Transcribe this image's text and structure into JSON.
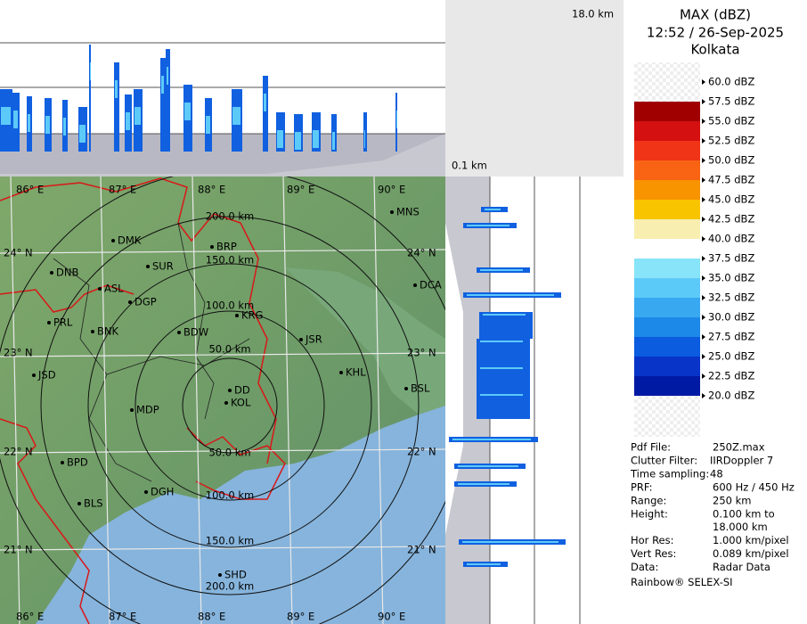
{
  "top_panel": {
    "top_label": "18.0 km",
    "bottom_label": "0.1 km"
  },
  "legend": {
    "title": "MAX (dBZ)",
    "time": "12:52 / 26-Sep-2025",
    "site": "Kolkata",
    "items": [
      {
        "label": "60.0 dBZ"
      },
      {
        "label": "57.5 dBZ",
        "color": "#a00000"
      },
      {
        "label": "55.0 dBZ",
        "color": "#d41010"
      },
      {
        "label": "52.5 dBZ",
        "color": "#f03418"
      },
      {
        "label": "50.0 dBZ",
        "color": "#f86414"
      },
      {
        "label": "47.5 dBZ",
        "color": "#f89400"
      },
      {
        "label": "45.0 dBZ",
        "color": "#f8c400"
      },
      {
        "label": "42.5 dBZ",
        "color": "#f8eeb0"
      },
      {
        "label": "40.0 dBZ",
        "color": "#ffffff"
      },
      {
        "label": "37.5 dBZ",
        "color": "#88e4f8"
      },
      {
        "label": "35.0 dBZ",
        "color": "#5ccaf8"
      },
      {
        "label": "32.5 dBZ",
        "color": "#38a8f0"
      },
      {
        "label": "30.0 dBZ",
        "color": "#1c88e8"
      },
      {
        "label": "27.5 dBZ",
        "color": "#0c5ce0"
      },
      {
        "label": "25.0 dBZ",
        "color": "#0834c8"
      },
      {
        "label": "22.5 dBZ",
        "color": "#001aa4"
      },
      {
        "label": "20.0 dBZ"
      }
    ]
  },
  "map": {
    "longitudes_top": [
      "86° E",
      "87° E",
      "88° E",
      "89° E",
      "90° E"
    ],
    "longitudes_bottom": [
      "86° E",
      "87° E",
      "88° E",
      "89° E",
      "90° E"
    ],
    "latitudes_left": [
      "24° N",
      "23° N",
      "22° N",
      "21° N"
    ],
    "latitudes_right": [
      "24° N",
      "23° N",
      "22° N",
      "21° N"
    ],
    "ring_labels_north": [
      "50.0 km",
      "100.0 km",
      "150.0 km",
      "200.0 km"
    ],
    "ring_labels_south": [
      "50.0 km",
      "100.0 km",
      "150.0 km",
      "200.0 km"
    ],
    "cities": [
      "MNS",
      "DMK",
      "BRP",
      "DNB",
      "SUR",
      "ASL",
      "DGP",
      "DCA",
      "KRG",
      "PRL",
      "BNK",
      "BDW",
      "JSR",
      "JSD",
      "KHL",
      "DD",
      "KOL",
      "BSL",
      "MDP",
      "BPD",
      "DGH",
      "BLS",
      "SHD"
    ]
  },
  "info": {
    "rows": [
      {
        "key": "Pdf File:",
        "value": [
          "250Z.max"
        ]
      },
      {
        "key": "Clutter Filter:",
        "value": [
          "IIRDoppler 7"
        ]
      },
      {
        "key": "Time sampling:",
        "value": [
          "48"
        ]
      },
      {
        "key": "PRF:",
        "value": [
          "600 Hz / 450 Hz"
        ]
      },
      {
        "key": "Range:",
        "value": [
          "250 km"
        ]
      },
      {
        "key": "Height:",
        "value": [
          "0.100 km to",
          "18.000 km"
        ]
      },
      {
        "key": "Hor Res:",
        "value": [
          "1.000 km/pixel"
        ]
      },
      {
        "key": "Vert Res:",
        "value": [
          "0.089 km/pixel"
        ]
      },
      {
        "key": "Data:",
        "value": [
          "Radar Data"
        ]
      }
    ],
    "footer": "Rainbow® SELEX-SI"
  }
}
